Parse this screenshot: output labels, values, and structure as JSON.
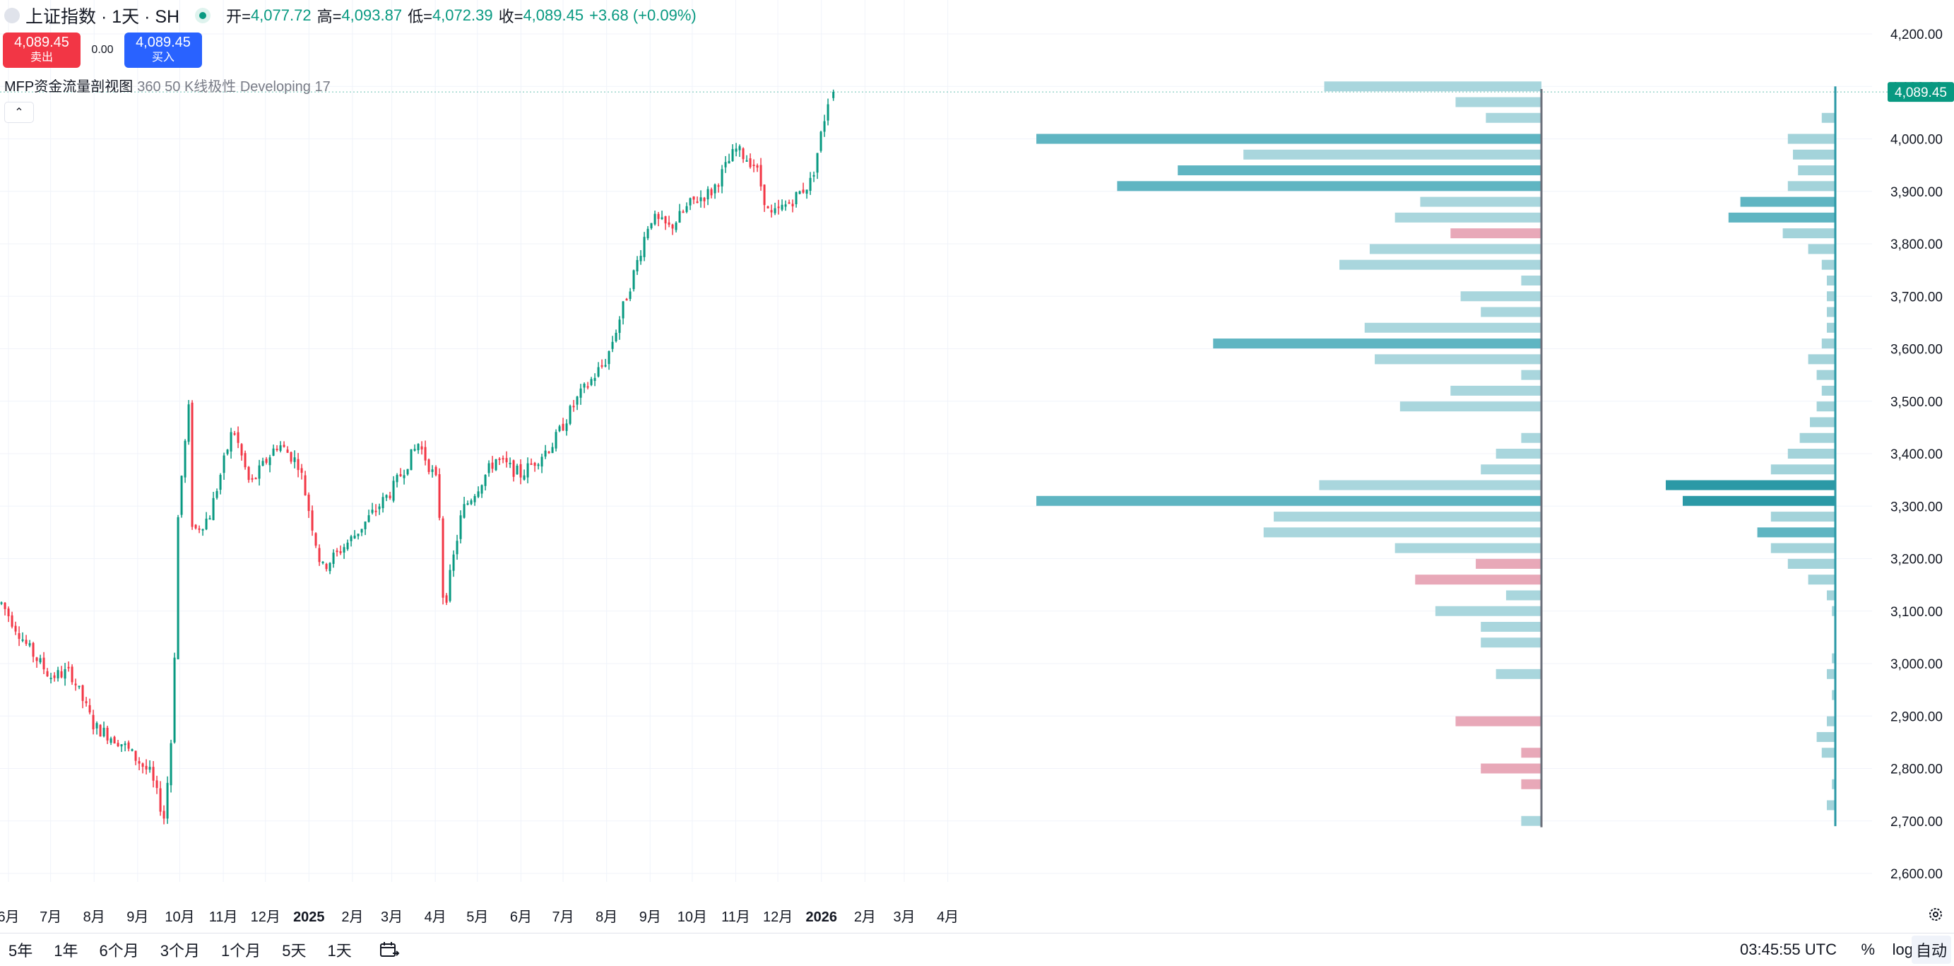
{
  "header": {
    "symbol_title": "上证指数 · 1天 · SH",
    "open_label": "开=",
    "open_value": "4,077.72",
    "high_label": "高=",
    "high_value": "4,093.87",
    "low_label": "低=",
    "low_value": "4,072.39",
    "close_label": "收=",
    "close_value": "4,089.45",
    "change": "+3.68 (+0.09%)"
  },
  "trade": {
    "sell_price": "4,089.45",
    "sell_label": "卖出",
    "spread": "0.00",
    "buy_price": "4,089.45",
    "buy_label": "买入"
  },
  "indicator": {
    "name": "MFP资金流量剖视图",
    "params": "360 50 K线极性 Developing 17"
  },
  "colors": {
    "up": "#089981",
    "down": "#f23645",
    "profile": "#3fa7b5",
    "profile_neg": "#e8a8b8",
    "accent": "#2962ff"
  },
  "price_axis": {
    "labels": [
      "4,200.00",
      "4,100.00",
      "4,000.00",
      "3,900.00",
      "3,800.00",
      "3,700.00",
      "3,600.00",
      "3,500.00",
      "3,400.00",
      "3,300.00",
      "3,200.00",
      "3,100.00",
      "3,000.00",
      "2,900.00",
      "2,800.00",
      "2,700.00",
      "2,600.00"
    ],
    "last_price": "4,089.45"
  },
  "time_axis": {
    "labels": [
      "6月",
      "7月",
      "8月",
      "9月",
      "10月",
      "11月",
      "12月",
      "2025",
      "2月",
      "3月",
      "4月",
      "5月",
      "6月",
      "7月",
      "8月",
      "9月",
      "10月",
      "11月",
      "12月",
      "2026",
      "2月",
      "3月",
      "4月"
    ]
  },
  "bottom_bar": {
    "ranges": [
      "5年",
      "1年",
      "6个月",
      "3个月",
      "1个月",
      "5天",
      "1天"
    ],
    "time": "03:45:55 UTC",
    "percent": "%",
    "log": "log",
    "auto": "自动"
  },
  "icons": [
    "symbol-icon",
    "status-dot-icon",
    "collapse-chevron-icon",
    "calendar-range-icon",
    "settings-gear-icon"
  ],
  "chart_data": {
    "type": "candlestick",
    "title": "上证指数 · 1天 · SH",
    "y_scale": "linear",
    "ylim": [
      2570,
      4240
    ],
    "grid": true,
    "last_bar": {
      "open": 4077.72,
      "high": 4093.87,
      "low": 4072.39,
      "close": 4089.45
    },
    "trend": [
      [
        "2024-05-27",
        3115
      ],
      [
        "2024-06-15",
        3030
      ],
      [
        "2024-07-01",
        2975
      ],
      [
        "2024-07-15",
        2985
      ],
      [
        "2024-08-01",
        2880
      ],
      [
        "2024-08-20",
        2850
      ],
      [
        "2024-09-10",
        2790
      ],
      [
        "2024-09-20",
        2705
      ],
      [
        "2024-09-26",
        2890
      ],
      [
        "2024-09-30",
        3300
      ],
      [
        "2024-10-08",
        3500
      ],
      [
        "2024-10-10",
        3250
      ],
      [
        "2024-10-22",
        3280
      ],
      [
        "2024-11-08",
        3450
      ],
      [
        "2024-11-20",
        3340
      ],
      [
        "2024-12-10",
        3420
      ],
      [
        "2024-12-25",
        3380
      ],
      [
        "2025-01-10",
        3180
      ],
      [
        "2025-02-01",
        3240
      ],
      [
        "2025-03-01",
        3330
      ],
      [
        "2025-03-20",
        3420
      ],
      [
        "2025-04-03",
        3340
      ],
      [
        "2025-04-07",
        3100
      ],
      [
        "2025-04-20",
        3290
      ],
      [
        "2025-05-14",
        3390
      ],
      [
        "2025-06-01",
        3360
      ],
      [
        "2025-06-24",
        3420
      ],
      [
        "2025-07-10",
        3500
      ],
      [
        "2025-08-01",
        3580
      ],
      [
        "2025-08-20",
        3740
      ],
      [
        "2025-09-01",
        3850
      ],
      [
        "2025-09-15",
        3830
      ],
      [
        "2025-10-01",
        3880
      ],
      [
        "2025-10-15",
        3900
      ],
      [
        "2025-11-01",
        3980
      ],
      [
        "2025-11-15",
        3950
      ],
      [
        "2025-11-25",
        3850
      ],
      [
        "2025-12-10",
        3880
      ],
      [
        "2025-12-25",
        3920
      ],
      [
        "2026-01-07",
        4090
      ]
    ],
    "profile_left": [
      {
        "price": 4100,
        "value": 0.43,
        "polarity": "up"
      },
      {
        "price": 4070,
        "value": 0.17,
        "polarity": "up"
      },
      {
        "price": 4040,
        "value": 0.11,
        "polarity": "up"
      },
      {
        "price": 4000,
        "value": 1.0,
        "polarity": "up"
      },
      {
        "price": 3970,
        "value": 0.59,
        "polarity": "up"
      },
      {
        "price": 3940,
        "value": 0.72,
        "polarity": "up"
      },
      {
        "price": 3910,
        "value": 0.84,
        "polarity": "up"
      },
      {
        "price": 3880,
        "value": 0.24,
        "polarity": "up"
      },
      {
        "price": 3850,
        "value": 0.29,
        "polarity": "up"
      },
      {
        "price": 3820,
        "value": 0.18,
        "polarity": "down"
      },
      {
        "price": 3790,
        "value": 0.34,
        "polarity": "up"
      },
      {
        "price": 3760,
        "value": 0.4,
        "polarity": "up"
      },
      {
        "price": 3730,
        "value": 0.04,
        "polarity": "up"
      },
      {
        "price": 3700,
        "value": 0.16,
        "polarity": "up"
      },
      {
        "price": 3670,
        "value": 0.12,
        "polarity": "up"
      },
      {
        "price": 3640,
        "value": 0.35,
        "polarity": "up"
      },
      {
        "price": 3610,
        "value": 0.65,
        "polarity": "up"
      },
      {
        "price": 3580,
        "value": 0.33,
        "polarity": "up"
      },
      {
        "price": 3550,
        "value": 0.04,
        "polarity": "up"
      },
      {
        "price": 3520,
        "value": 0.18,
        "polarity": "up"
      },
      {
        "price": 3490,
        "value": 0.28,
        "polarity": "up"
      },
      {
        "price": 3430,
        "value": 0.04,
        "polarity": "up"
      },
      {
        "price": 3400,
        "value": 0.09,
        "polarity": "up"
      },
      {
        "price": 3370,
        "value": 0.12,
        "polarity": "up"
      },
      {
        "price": 3340,
        "value": 0.44,
        "polarity": "up"
      },
      {
        "price": 3310,
        "value": 1.0,
        "polarity": "up"
      },
      {
        "price": 3280,
        "value": 0.53,
        "polarity": "up"
      },
      {
        "price": 3250,
        "value": 0.55,
        "polarity": "up"
      },
      {
        "price": 3220,
        "value": 0.29,
        "polarity": "up"
      },
      {
        "price": 3190,
        "value": 0.13,
        "polarity": "down"
      },
      {
        "price": 3160,
        "value": 0.25,
        "polarity": "down"
      },
      {
        "price": 3130,
        "value": 0.07,
        "polarity": "up"
      },
      {
        "price": 3100,
        "value": 0.21,
        "polarity": "up"
      },
      {
        "price": 3070,
        "value": 0.12,
        "polarity": "up"
      },
      {
        "price": 3040,
        "value": 0.12,
        "polarity": "up"
      },
      {
        "price": 2980,
        "value": 0.09,
        "polarity": "up"
      },
      {
        "price": 2890,
        "value": 0.17,
        "polarity": "down"
      },
      {
        "price": 2830,
        "value": 0.04,
        "polarity": "down"
      },
      {
        "price": 2800,
        "value": 0.12,
        "polarity": "down"
      },
      {
        "price": 2770,
        "value": 0.04,
        "polarity": "down"
      },
      {
        "price": 2700,
        "value": 0.04,
        "polarity": "up"
      }
    ],
    "profile_right": [
      {
        "price": 4040,
        "value": 0.08
      },
      {
        "price": 4000,
        "value": 0.28
      },
      {
        "price": 3970,
        "value": 0.25
      },
      {
        "price": 3940,
        "value": 0.22
      },
      {
        "price": 3910,
        "value": 0.28
      },
      {
        "price": 3880,
        "value": 0.56
      },
      {
        "price": 3850,
        "value": 0.63
      },
      {
        "price": 3820,
        "value": 0.31
      },
      {
        "price": 3790,
        "value": 0.16
      },
      {
        "price": 3760,
        "value": 0.08
      },
      {
        "price": 3730,
        "value": 0.05
      },
      {
        "price": 3700,
        "value": 0.05
      },
      {
        "price": 3670,
        "value": 0.05
      },
      {
        "price": 3640,
        "value": 0.05
      },
      {
        "price": 3610,
        "value": 0.08
      },
      {
        "price": 3580,
        "value": 0.16
      },
      {
        "price": 3550,
        "value": 0.11
      },
      {
        "price": 3520,
        "value": 0.08
      },
      {
        "price": 3490,
        "value": 0.11
      },
      {
        "price": 3460,
        "value": 0.15
      },
      {
        "price": 3430,
        "value": 0.21
      },
      {
        "price": 3400,
        "value": 0.28
      },
      {
        "price": 3370,
        "value": 0.38
      },
      {
        "price": 3340,
        "value": 1.0
      },
      {
        "price": 3310,
        "value": 0.9
      },
      {
        "price": 3280,
        "value": 0.38
      },
      {
        "price": 3250,
        "value": 0.46
      },
      {
        "price": 3220,
        "value": 0.38
      },
      {
        "price": 3190,
        "value": 0.28
      },
      {
        "price": 3160,
        "value": 0.16
      },
      {
        "price": 3130,
        "value": 0.05
      },
      {
        "price": 3100,
        "value": 0.02
      },
      {
        "price": 3010,
        "value": 0.02
      },
      {
        "price": 2980,
        "value": 0.05
      },
      {
        "price": 2940,
        "value": 0.02
      },
      {
        "price": 2890,
        "value": 0.05
      },
      {
        "price": 2860,
        "value": 0.11
      },
      {
        "price": 2830,
        "value": 0.08
      },
      {
        "price": 2770,
        "value": 0.02
      },
      {
        "price": 2730,
        "value": 0.05
      }
    ]
  }
}
